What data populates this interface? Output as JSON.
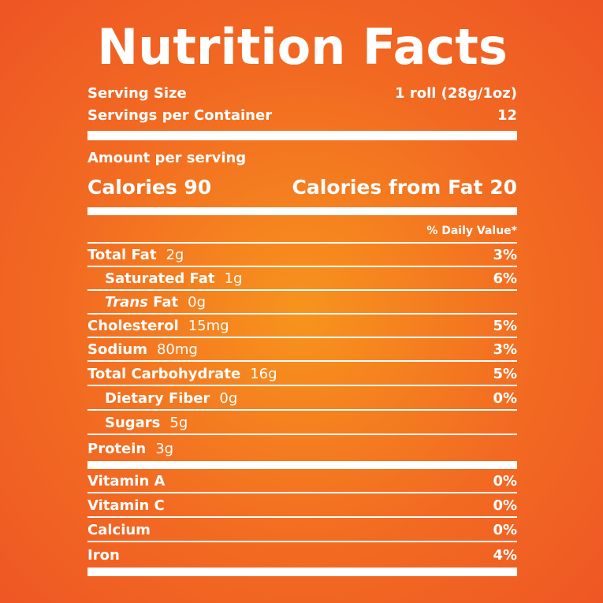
{
  "title": "Nutrition Facts",
  "serving": {
    "size_label": "Serving Size",
    "size_value": "1 roll (28g/1oz)",
    "per_container_label": "Servings per Container",
    "per_container_value": "12"
  },
  "calories": {
    "amount_label": "Amount per serving",
    "calories_text": "Calories 90",
    "from_fat_text": "Calories from Fat 20"
  },
  "daily_value_header": "% Daily Value*",
  "nutrients": [
    {
      "name": "Total Fat",
      "amount": "2g",
      "dv": "3%"
    },
    {
      "name": "Saturated Fat",
      "amount": "1g",
      "dv": "6%"
    },
    {
      "name_italic": "Trans",
      "name": "Fat",
      "amount": "0g",
      "dv": ""
    },
    {
      "name": "Cholesterol",
      "amount": "15mg",
      "dv": "5%"
    },
    {
      "name": "Sodium",
      "amount": "80mg",
      "dv": "3%"
    },
    {
      "name": "Total Carbohydrate",
      "amount": "16g",
      "dv": "5%"
    },
    {
      "name": "Dietary Fiber",
      "amount": "0g",
      "dv": "0%"
    },
    {
      "name": "Sugars",
      "amount": "5g",
      "dv": ""
    },
    {
      "name": "Protein",
      "amount": "3g",
      "dv": ""
    }
  ],
  "vitamins": [
    {
      "name": "Vitamin A",
      "dv": "0%"
    },
    {
      "name": "Vitamin C",
      "dv": "0%"
    },
    {
      "name": "Calcium",
      "dv": "0%"
    },
    {
      "name": "Iron",
      "dv": "4%"
    }
  ]
}
